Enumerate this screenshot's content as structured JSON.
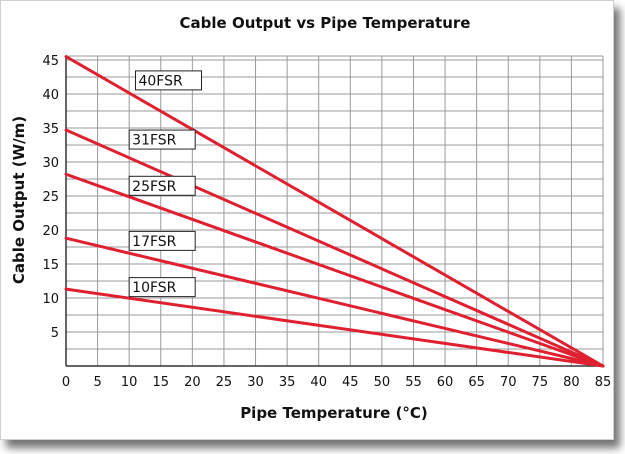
{
  "chart_data": {
    "type": "line",
    "title": "Cable Output vs Pipe Temperature",
    "xlabel": "Pipe Temperature (°C)",
    "ylabel": "Cable Output (W/m)",
    "xlim": [
      0,
      85
    ],
    "ylim": [
      0,
      45
    ],
    "x_ticks": [
      0,
      5,
      10,
      15,
      20,
      25,
      30,
      35,
      40,
      45,
      50,
      55,
      60,
      65,
      70,
      75,
      80,
      85
    ],
    "y_ticks": [
      5,
      10,
      15,
      20,
      25,
      30,
      35,
      40,
      45
    ],
    "grid": true,
    "line_color": "#e02030",
    "series": [
      {
        "name": "40FSR",
        "x": [
          0,
          85
        ],
        "y": [
          45.5,
          0
        ],
        "label_at": [
          11,
          42
        ]
      },
      {
        "name": "31FSR",
        "x": [
          0,
          85
        ],
        "y": [
          34.7,
          0
        ],
        "label_at": [
          10,
          33.3
        ]
      },
      {
        "name": "25FSR",
        "x": [
          0,
          85
        ],
        "y": [
          28.2,
          0
        ],
        "label_at": [
          10,
          26.5
        ]
      },
      {
        "name": "17FSR",
        "x": [
          0,
          85
        ],
        "y": [
          18.8,
          0
        ],
        "label_at": [
          10,
          18.4
        ]
      },
      {
        "name": "10FSR",
        "x": [
          0,
          85
        ],
        "y": [
          11.3,
          0
        ],
        "label_at": [
          10,
          11.6
        ]
      }
    ]
  }
}
